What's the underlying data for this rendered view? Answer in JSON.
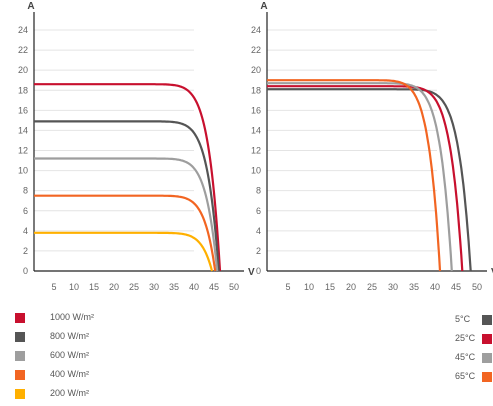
{
  "chart_data": [
    {
      "type": "line",
      "xlabel": "V",
      "ylabel": "A",
      "xlim": [
        0,
        50
      ],
      "ylim": [
        0,
        24
      ],
      "xticks": [
        "5",
        "10",
        "15",
        "20",
        "25",
        "30",
        "35",
        "40",
        "45",
        "50"
      ],
      "yticks": [
        "0",
        "2",
        "4",
        "6",
        "8",
        "10",
        "12",
        "14",
        "16",
        "18",
        "20",
        "22",
        "24"
      ],
      "grid": true,
      "legend_position": "bottom-left",
      "series": [
        {
          "name": "1000 W/m²",
          "color": "#c8102e",
          "isc": 18.6,
          "knee": 38,
          "voc": 46.5
        },
        {
          "name": "800 W/m²",
          "color": "#555555",
          "isc": 14.9,
          "knee": 38.5,
          "voc": 46.2
        },
        {
          "name": "600 W/m²",
          "color": "#9e9e9e",
          "isc": 11.2,
          "knee": 39,
          "voc": 45.8
        },
        {
          "name": "400 W/m²",
          "color": "#f26522",
          "isc": 7.5,
          "knee": 39.5,
          "voc": 45.3
        },
        {
          "name": "200 W/m²",
          "color": "#ffb000",
          "isc": 3.8,
          "knee": 40,
          "voc": 44.5
        }
      ]
    },
    {
      "type": "line",
      "xlabel": "V",
      "ylabel": "A",
      "xlim": [
        0,
        50
      ],
      "ylim": [
        0,
        24
      ],
      "xticks": [
        "5",
        "10",
        "15",
        "20",
        "25",
        "30",
        "35",
        "40",
        "45",
        "50"
      ],
      "yticks": [
        "0",
        "2",
        "4",
        "6",
        "8",
        "10",
        "12",
        "14",
        "16",
        "18",
        "20",
        "22",
        "24"
      ],
      "grid": true,
      "legend_position": "bottom-right",
      "series": [
        {
          "name": "5°C",
          "color": "#555555",
          "isc": 18.1,
          "knee": 42,
          "voc": 48.5
        },
        {
          "name": "25°C",
          "color": "#c8102e",
          "isc": 18.4,
          "knee": 38.5,
          "voc": 46.5
        },
        {
          "name": "45°C",
          "color": "#9e9e9e",
          "isc": 18.7,
          "knee": 35,
          "voc": 44.0
        },
        {
          "name": "65°C",
          "color": "#f26522",
          "isc": 19.0,
          "knee": 31,
          "voc": 41.2
        }
      ]
    }
  ]
}
